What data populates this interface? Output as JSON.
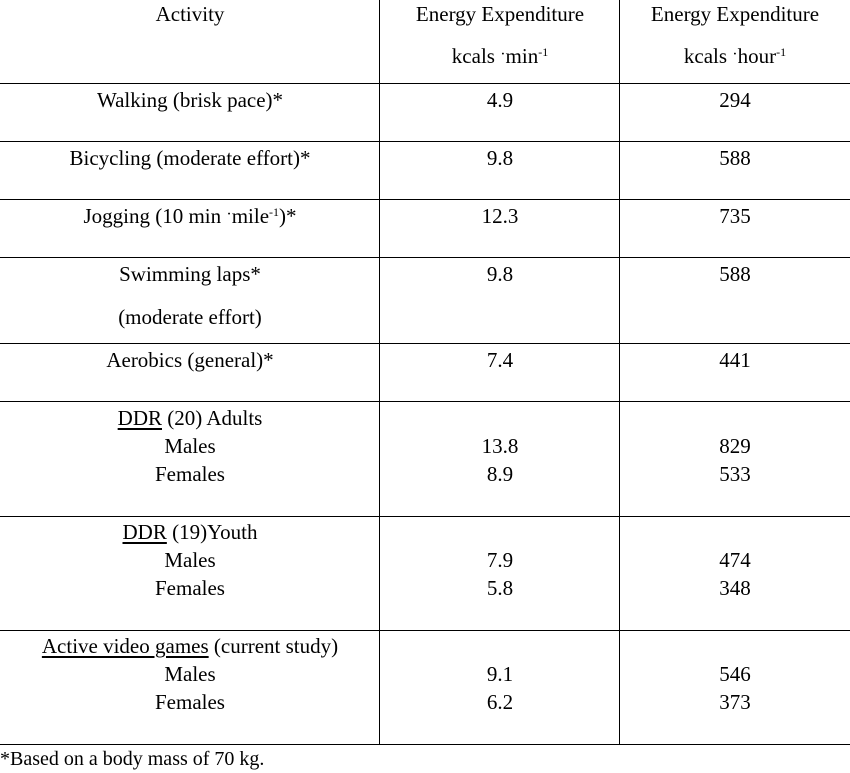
{
  "header": {
    "activity": "Activity",
    "col2_line1": "Energy Expenditure",
    "col2_unit_a": "kcals",
    "col2_unit_b": "min",
    "col2_sup": "-1",
    "col3_line1": "Energy Expenditure",
    "col3_unit_a": "kcals",
    "col3_unit_b": "hour",
    "col3_sup": "-1",
    "dot": "·"
  },
  "rows": [
    {
      "activity": "Walking (brisk pace)*",
      "min": "4.9",
      "hour": "294"
    },
    {
      "activity": "Bicycling (moderate effort)*",
      "min": "9.8",
      "hour": "588"
    },
    {
      "activity_a": "Jogging (10 min",
      "activity_b": "mile",
      "activity_sup": "-1",
      "activity_c": ")*",
      "min": "12.3",
      "hour": "735"
    },
    {
      "activity_line1": "Swimming laps*",
      "activity_line2": "(moderate effort)",
      "min": "9.8",
      "hour": "588"
    },
    {
      "activity": "Aerobics (general)*",
      "min": "7.4",
      "hour": "441"
    }
  ],
  "groups": [
    {
      "label_u": "DDR",
      "label_rest": " (20) Adults",
      "males_label": "Males",
      "males_min": "13.8",
      "males_hour": "829",
      "females_label": "Females",
      "females_min": "8.9",
      "females_hour": "533"
    },
    {
      "label_u": "DDR",
      "label_rest": " (19)Youth",
      "males_label": "Males",
      "males_min": "7.9",
      "males_hour": "474",
      "females_label": "Females",
      "females_min": "5.8",
      "females_hour": "348"
    },
    {
      "label_u": "Active video games",
      "label_rest": " (current study)",
      "males_label": "Males",
      "males_min": "9.1",
      "males_hour": "546",
      "females_label": "Females",
      "females_min": "6.2",
      "females_hour": "373"
    }
  ],
  "footnote": "*Based on a body mass of 70 kg."
}
